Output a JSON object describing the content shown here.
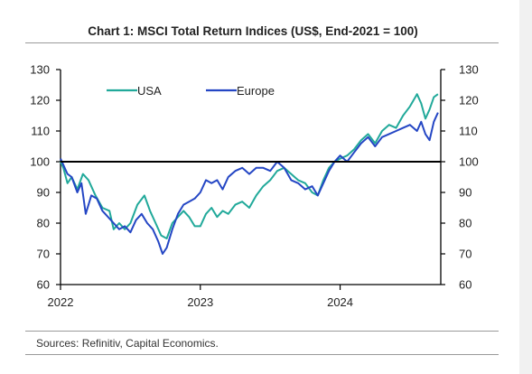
{
  "title": "Chart 1: MSCI Total Return Indices (US$, End-2021 = 100)",
  "source": "Sources: Refinitiv, Capital Economics.",
  "colors": {
    "usa": "#21a99a",
    "europe": "#2446c4",
    "reference": "#000000",
    "axis": "#000000"
  },
  "chart_data": {
    "type": "line",
    "title": "Chart 1: MSCI Total Return Indices (US$, End-2021 = 100)",
    "xlabel": "",
    "ylabel": "",
    "xlim": [
      2022.0,
      2024.72
    ],
    "ylim": [
      60,
      130
    ],
    "x_ticks": [
      {
        "value": 2022,
        "label": "2022"
      },
      {
        "value": 2023,
        "label": "2023"
      },
      {
        "value": 2024,
        "label": "2024"
      }
    ],
    "y_ticks": [
      {
        "value": 60,
        "label": "60"
      },
      {
        "value": 70,
        "label": "70"
      },
      {
        "value": 80,
        "label": "80"
      },
      {
        "value": 90,
        "label": "90"
      },
      {
        "value": 100,
        "label": "100"
      },
      {
        "value": 110,
        "label": "110"
      },
      {
        "value": 120,
        "label": "120"
      },
      {
        "value": 130,
        "label": "130"
      }
    ],
    "reference_line": 100,
    "grid": false,
    "legend": "top-left",
    "series": [
      {
        "name": "USA",
        "color": "#21a99a",
        "points": [
          [
            2022.0,
            100
          ],
          [
            2022.02,
            98
          ],
          [
            2022.05,
            93
          ],
          [
            2022.08,
            95
          ],
          [
            2022.12,
            91
          ],
          [
            2022.16,
            96
          ],
          [
            2022.2,
            94
          ],
          [
            2022.25,
            89
          ],
          [
            2022.3,
            85
          ],
          [
            2022.35,
            84
          ],
          [
            2022.38,
            78
          ],
          [
            2022.42,
            80
          ],
          [
            2022.46,
            78
          ],
          [
            2022.5,
            80
          ],
          [
            2022.55,
            86
          ],
          [
            2022.6,
            89
          ],
          [
            2022.64,
            84
          ],
          [
            2022.68,
            80
          ],
          [
            2022.72,
            76
          ],
          [
            2022.76,
            75
          ],
          [
            2022.8,
            80
          ],
          [
            2022.84,
            82
          ],
          [
            2022.88,
            84
          ],
          [
            2022.92,
            82
          ],
          [
            2022.96,
            79
          ],
          [
            2023.0,
            79
          ],
          [
            2023.04,
            83
          ],
          [
            2023.08,
            85
          ],
          [
            2023.12,
            82
          ],
          [
            2023.16,
            84
          ],
          [
            2023.2,
            83
          ],
          [
            2023.25,
            86
          ],
          [
            2023.3,
            87
          ],
          [
            2023.35,
            85
          ],
          [
            2023.4,
            89
          ],
          [
            2023.45,
            92
          ],
          [
            2023.5,
            94
          ],
          [
            2023.55,
            97
          ],
          [
            2023.6,
            98
          ],
          [
            2023.65,
            96
          ],
          [
            2023.7,
            94
          ],
          [
            2023.75,
            93
          ],
          [
            2023.8,
            90
          ],
          [
            2023.84,
            89
          ],
          [
            2023.88,
            94
          ],
          [
            2023.92,
            98
          ],
          [
            2023.96,
            100
          ],
          [
            2024.0,
            101
          ],
          [
            2024.05,
            102
          ],
          [
            2024.1,
            104
          ],
          [
            2024.15,
            107
          ],
          [
            2024.2,
            109
          ],
          [
            2024.25,
            106
          ],
          [
            2024.3,
            110
          ],
          [
            2024.35,
            112
          ],
          [
            2024.4,
            111
          ],
          [
            2024.45,
            115
          ],
          [
            2024.5,
            118
          ],
          [
            2024.55,
            122
          ],
          [
            2024.58,
            119
          ],
          [
            2024.61,
            114
          ],
          [
            2024.64,
            117
          ],
          [
            2024.67,
            121
          ],
          [
            2024.7,
            122
          ]
        ]
      },
      {
        "name": "Europe",
        "color": "#2446c4",
        "points": [
          [
            2022.0,
            101
          ],
          [
            2022.02,
            99
          ],
          [
            2022.05,
            96
          ],
          [
            2022.08,
            95
          ],
          [
            2022.12,
            90
          ],
          [
            2022.15,
            93
          ],
          [
            2022.18,
            83
          ],
          [
            2022.22,
            89
          ],
          [
            2022.26,
            88
          ],
          [
            2022.3,
            84
          ],
          [
            2022.34,
            82
          ],
          [
            2022.38,
            80
          ],
          [
            2022.42,
            78
          ],
          [
            2022.46,
            79
          ],
          [
            2022.5,
            77
          ],
          [
            2022.54,
            81
          ],
          [
            2022.58,
            83
          ],
          [
            2022.62,
            80
          ],
          [
            2022.66,
            78
          ],
          [
            2022.7,
            74
          ],
          [
            2022.73,
            70
          ],
          [
            2022.76,
            72
          ],
          [
            2022.8,
            78
          ],
          [
            2022.84,
            83
          ],
          [
            2022.88,
            86
          ],
          [
            2022.92,
            87
          ],
          [
            2022.96,
            88
          ],
          [
            2023.0,
            90
          ],
          [
            2023.04,
            94
          ],
          [
            2023.08,
            93
          ],
          [
            2023.12,
            94
          ],
          [
            2023.16,
            91
          ],
          [
            2023.2,
            95
          ],
          [
            2023.25,
            97
          ],
          [
            2023.3,
            98
          ],
          [
            2023.35,
            96
          ],
          [
            2023.4,
            98
          ],
          [
            2023.45,
            98
          ],
          [
            2023.5,
            97
          ],
          [
            2023.55,
            100
          ],
          [
            2023.6,
            98
          ],
          [
            2023.65,
            94
          ],
          [
            2023.7,
            93
          ],
          [
            2023.75,
            91
          ],
          [
            2023.8,
            92
          ],
          [
            2023.84,
            89
          ],
          [
            2023.88,
            93
          ],
          [
            2023.92,
            97
          ],
          [
            2023.96,
            100
          ],
          [
            2024.0,
            102
          ],
          [
            2024.05,
            100
          ],
          [
            2024.1,
            103
          ],
          [
            2024.15,
            106
          ],
          [
            2024.2,
            108
          ],
          [
            2024.25,
            105
          ],
          [
            2024.3,
            108
          ],
          [
            2024.35,
            109
          ],
          [
            2024.4,
            110
          ],
          [
            2024.45,
            111
          ],
          [
            2024.5,
            112
          ],
          [
            2024.55,
            110
          ],
          [
            2024.58,
            113
          ],
          [
            2024.61,
            109
          ],
          [
            2024.64,
            107
          ],
          [
            2024.67,
            113
          ],
          [
            2024.7,
            116
          ]
        ]
      }
    ]
  }
}
